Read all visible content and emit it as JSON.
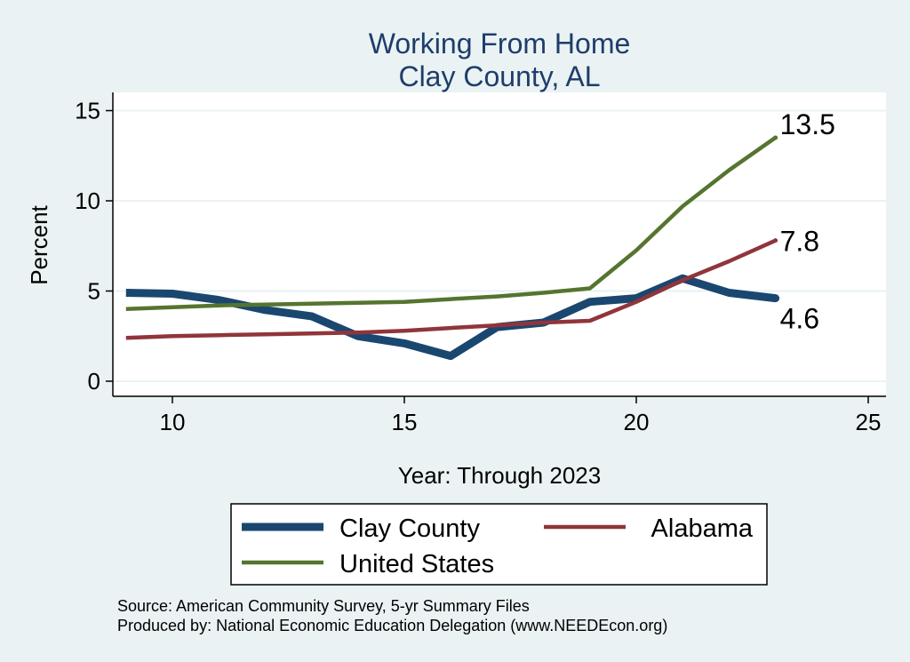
{
  "chart_data": {
    "type": "line",
    "title": "Working From Home",
    "subtitle": "Clay County, AL",
    "xlabel": "Year: Through 2023",
    "ylabel": "Percent",
    "xlim": [
      9,
      25
    ],
    "ylim": [
      0,
      15
    ],
    "xticks": [
      10,
      15,
      20,
      25
    ],
    "yticks": [
      0,
      5,
      10,
      15
    ],
    "grid": true,
    "legend_position": "bottom",
    "x": [
      9,
      10,
      11,
      12,
      13,
      14,
      15,
      16,
      17,
      18,
      19,
      20,
      21,
      22,
      23
    ],
    "series": [
      {
        "name": "Clay County",
        "color": "#1a476f",
        "values": [
          4.9,
          4.85,
          4.5,
          3.95,
          3.6,
          2.5,
          2.1,
          1.4,
          3.0,
          3.25,
          4.4,
          4.6,
          5.7,
          4.9,
          4.6
        ],
        "end_label": "4.6"
      },
      {
        "name": "Alabama",
        "color": "#90353b",
        "values": [
          2.4,
          2.5,
          2.55,
          2.6,
          2.65,
          2.7,
          2.8,
          2.95,
          3.1,
          3.25,
          3.35,
          4.4,
          5.6,
          6.65,
          7.8
        ],
        "end_label": "7.8"
      },
      {
        "name": "United States",
        "color": "#55752f",
        "values": [
          4.0,
          4.1,
          4.2,
          4.25,
          4.3,
          4.35,
          4.4,
          4.55,
          4.7,
          4.9,
          5.15,
          7.25,
          9.7,
          11.7,
          13.5
        ],
        "end_label": "13.5"
      }
    ],
    "notes": [
      "Source: American Community Survey, 5-yr Summary Files",
      "Produced by: National Economic Education Delegation (www.NEEDEcon.org)"
    ]
  }
}
